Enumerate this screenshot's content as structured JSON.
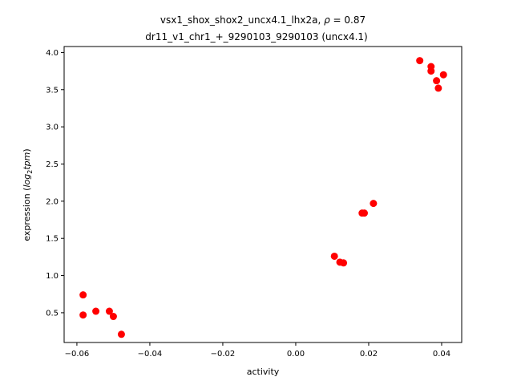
{
  "chart_data": {
    "type": "scatter",
    "title_line1_prefix": "vsx1_shox_shox2_uncx4.1_lhx2a, ",
    "title_rho_symbol": "ρ",
    "title_rho_rest": " = 0.87",
    "title_line2": "dr11_v1_chr1_+_9290103_9290103 (uncx4.1)",
    "xlabel": "activity",
    "ylabel_prefix": "expression (",
    "ylabel_log": "log",
    "ylabel_sub": "2",
    "ylabel_tpm": "tpm",
    "ylabel_suffix": ")",
    "xlim": [
      -0.0635,
      0.0455
    ],
    "ylim": [
      0.1,
      4.08
    ],
    "xticks": [
      -0.06,
      -0.04,
      -0.02,
      0.0,
      0.02,
      0.04
    ],
    "xtick_labels": [
      "−0.06",
      "−0.04",
      "−0.02",
      "0.00",
      "0.02",
      "0.04"
    ],
    "yticks": [
      0.5,
      1.0,
      1.5,
      2.0,
      2.5,
      3.0,
      3.5,
      4.0
    ],
    "ytick_labels": [
      "0.5",
      "1.0",
      "1.5",
      "2.0",
      "2.5",
      "3.0",
      "3.5",
      "4.0"
    ],
    "grid": false,
    "marker_color": "#ff0000",
    "points": [
      {
        "x": -0.0583,
        "y": 0.74
      },
      {
        "x": -0.0583,
        "y": 0.47
      },
      {
        "x": -0.0548,
        "y": 0.52
      },
      {
        "x": -0.0511,
        "y": 0.52
      },
      {
        "x": -0.05,
        "y": 0.45
      },
      {
        "x": -0.0478,
        "y": 0.21
      },
      {
        "x": 0.0106,
        "y": 1.26
      },
      {
        "x": 0.0121,
        "y": 1.18
      },
      {
        "x": 0.0131,
        "y": 1.17
      },
      {
        "x": 0.0182,
        "y": 1.84
      },
      {
        "x": 0.0188,
        "y": 1.84
      },
      {
        "x": 0.0213,
        "y": 1.97
      },
      {
        "x": 0.034,
        "y": 3.89
      },
      {
        "x": 0.0371,
        "y": 3.81
      },
      {
        "x": 0.0371,
        "y": 3.75
      },
      {
        "x": 0.0386,
        "y": 3.62
      },
      {
        "x": 0.0391,
        "y": 3.52
      },
      {
        "x": 0.0405,
        "y": 3.7
      }
    ]
  }
}
